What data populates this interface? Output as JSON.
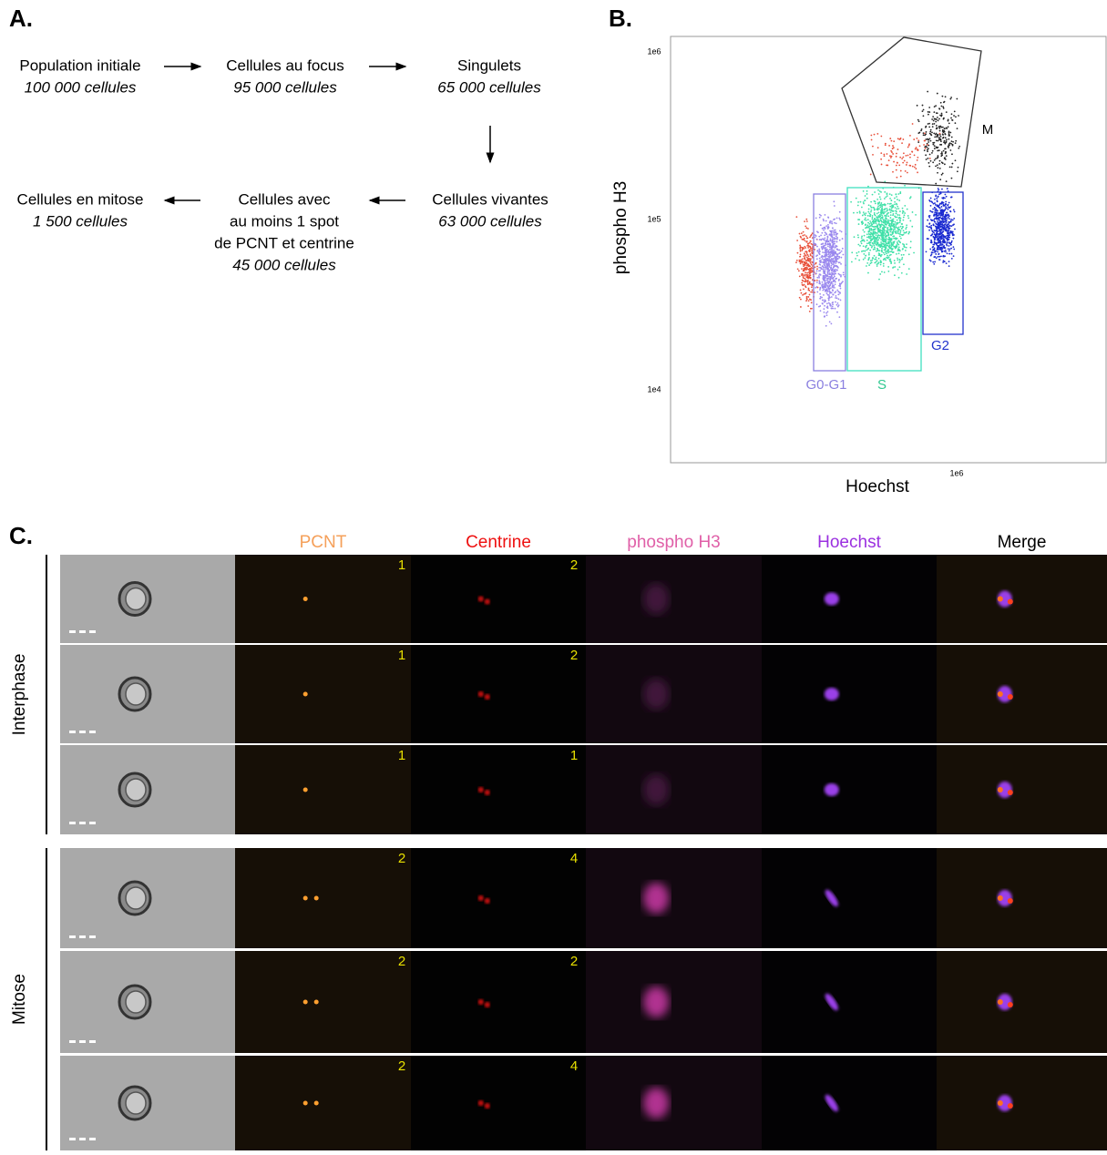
{
  "flow": {
    "label": "A.",
    "steps": [
      {
        "name_lines": [
          "Population initiale"
        ],
        "count": "100 000 cellules"
      },
      {
        "name_lines": [
          "Cellules au focus"
        ],
        "count": "95 000 cellules"
      },
      {
        "name_lines": [
          "Singulets"
        ],
        "count": "65 000 cellules"
      },
      {
        "name_lines": [
          "Cellules vivantes"
        ],
        "count": "63 000 cellules"
      },
      {
        "name_lines": [
          "Cellules avec",
          "au moins 1 spot",
          "de PCNT et centrine"
        ],
        "count": "45 000 cellules"
      },
      {
        "name_lines": [
          "Cellules en mitose"
        ],
        "count": "1 500 cellules"
      }
    ]
  },
  "plot": {
    "label": "B.",
    "x_label": "Hoechst",
    "y_label": "phospho H3",
    "y_tick_labels": [
      "1e6",
      "1e5",
      "1e4"
    ],
    "x_tick_labels": [
      "1e6"
    ],
    "gates": [
      "M",
      "G0-G1",
      "S",
      "G2"
    ]
  },
  "images": {
    "label": "C.",
    "columns": [
      "PCNT",
      "Centrine",
      "phospho H3",
      "Hoechst",
      "Merge"
    ],
    "groups": [
      {
        "name": "Interphase",
        "rows": [
          {
            "pcnt": 1,
            "centrine": 2
          },
          {
            "pcnt": 1,
            "centrine": 2
          },
          {
            "pcnt": 1,
            "centrine": 1
          }
        ]
      },
      {
        "name": "Mitose",
        "rows": [
          {
            "pcnt": 2,
            "centrine": 4
          },
          {
            "pcnt": 2,
            "centrine": 2
          },
          {
            "pcnt": 2,
            "centrine": 4
          }
        ]
      }
    ]
  }
}
